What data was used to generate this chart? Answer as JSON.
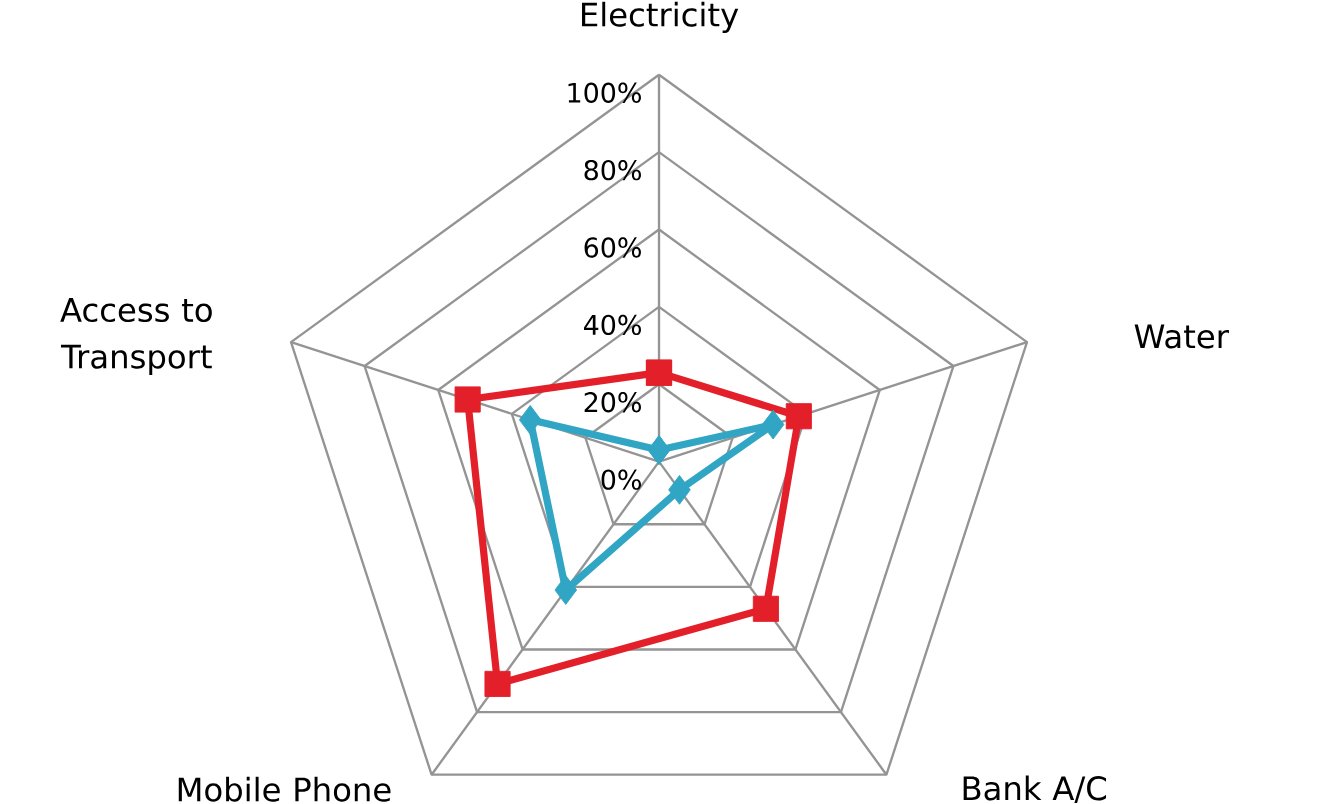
{
  "chart_data": {
    "type": "radar",
    "categories": [
      "Electricity",
      "Water",
      "Bank A/C",
      "Mobile Phone",
      "Access to Transport"
    ],
    "ylim": [
      0,
      100
    ],
    "yticks": [
      {
        "value": 0,
        "label": "0%"
      },
      {
        "value": 20,
        "label": "20%"
      },
      {
        "value": 40,
        "label": "40%"
      },
      {
        "value": 60,
        "label": "60%"
      },
      {
        "value": 80,
        "label": "80%"
      },
      {
        "value": 100,
        "label": "100%"
      }
    ],
    "grid": true,
    "series": [
      {
        "color": "#e3202a",
        "marker": "square",
        "values": [
          23,
          38,
          47,
          71,
          52
        ]
      },
      {
        "color": "#31a5c4",
        "marker": "diamond",
        "values": [
          3,
          31,
          9,
          41,
          35
        ]
      }
    ]
  }
}
